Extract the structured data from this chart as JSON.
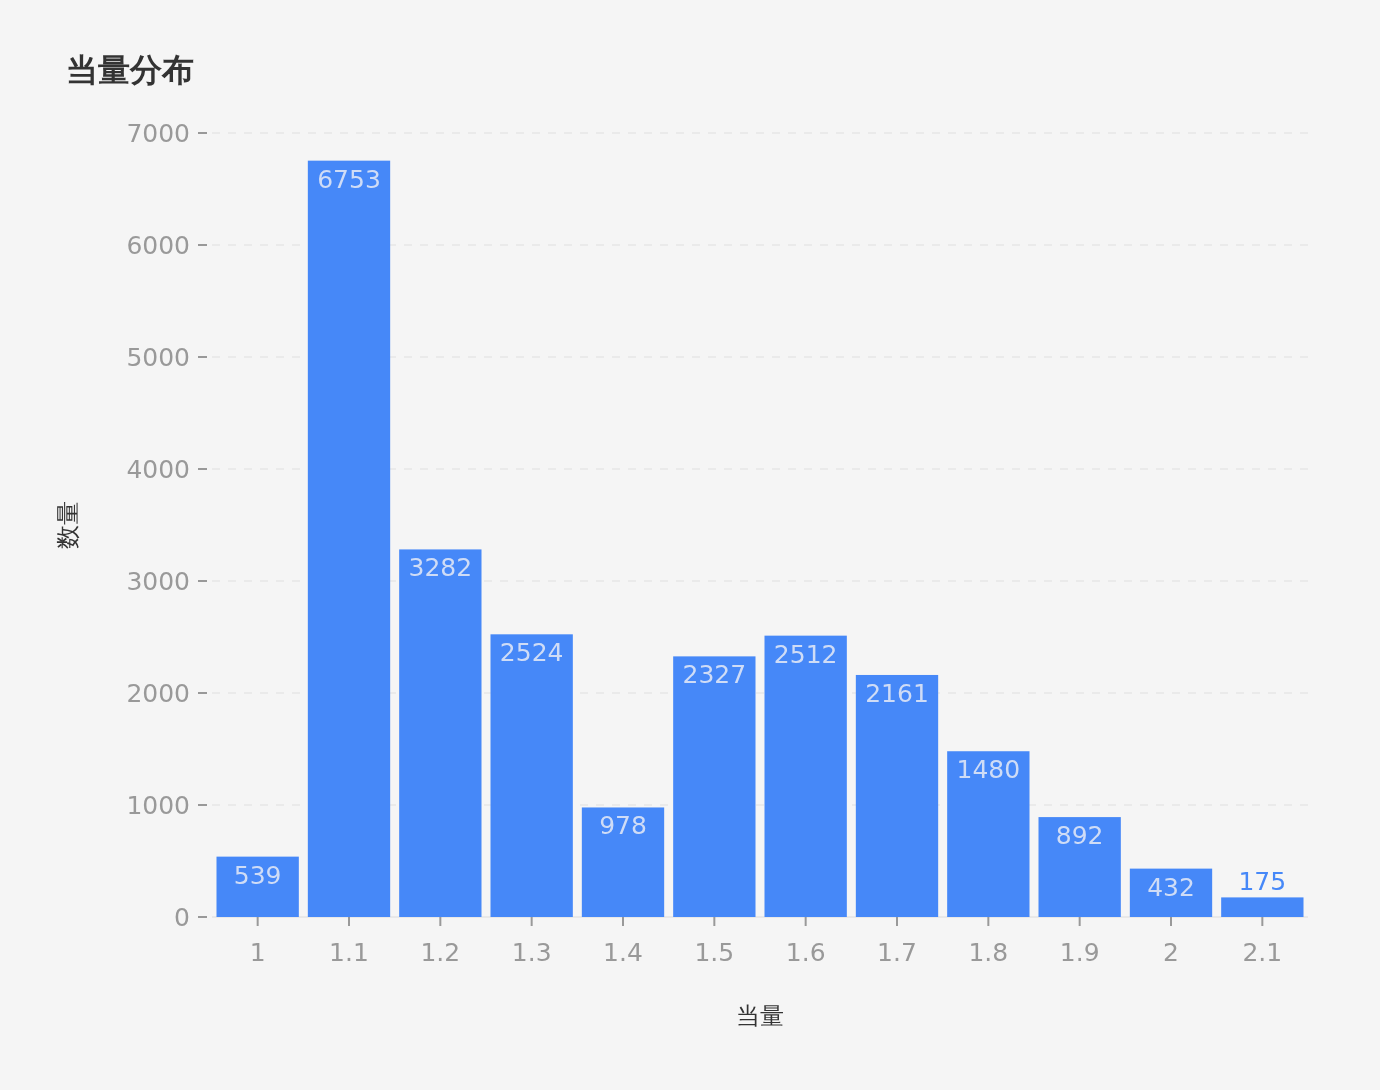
{
  "chart_data": {
    "type": "bar",
    "title": "当量分布",
    "xlabel": "当量",
    "ylabel": "数量",
    "categories": [
      "1",
      "1.1",
      "1.2",
      "1.3",
      "1.4",
      "1.5",
      "1.6",
      "1.7",
      "1.8",
      "1.9",
      "2",
      "2.1"
    ],
    "values": [
      539,
      6753,
      3282,
      2524,
      978,
      2327,
      2512,
      2161,
      1480,
      892,
      432,
      175
    ],
    "color": "#4688f8",
    "ylim": [
      0,
      7000
    ],
    "yticks": [
      0,
      1000,
      2000,
      3000,
      4000,
      5000,
      6000,
      7000
    ],
    "grid": "y",
    "data_labels": true
  }
}
